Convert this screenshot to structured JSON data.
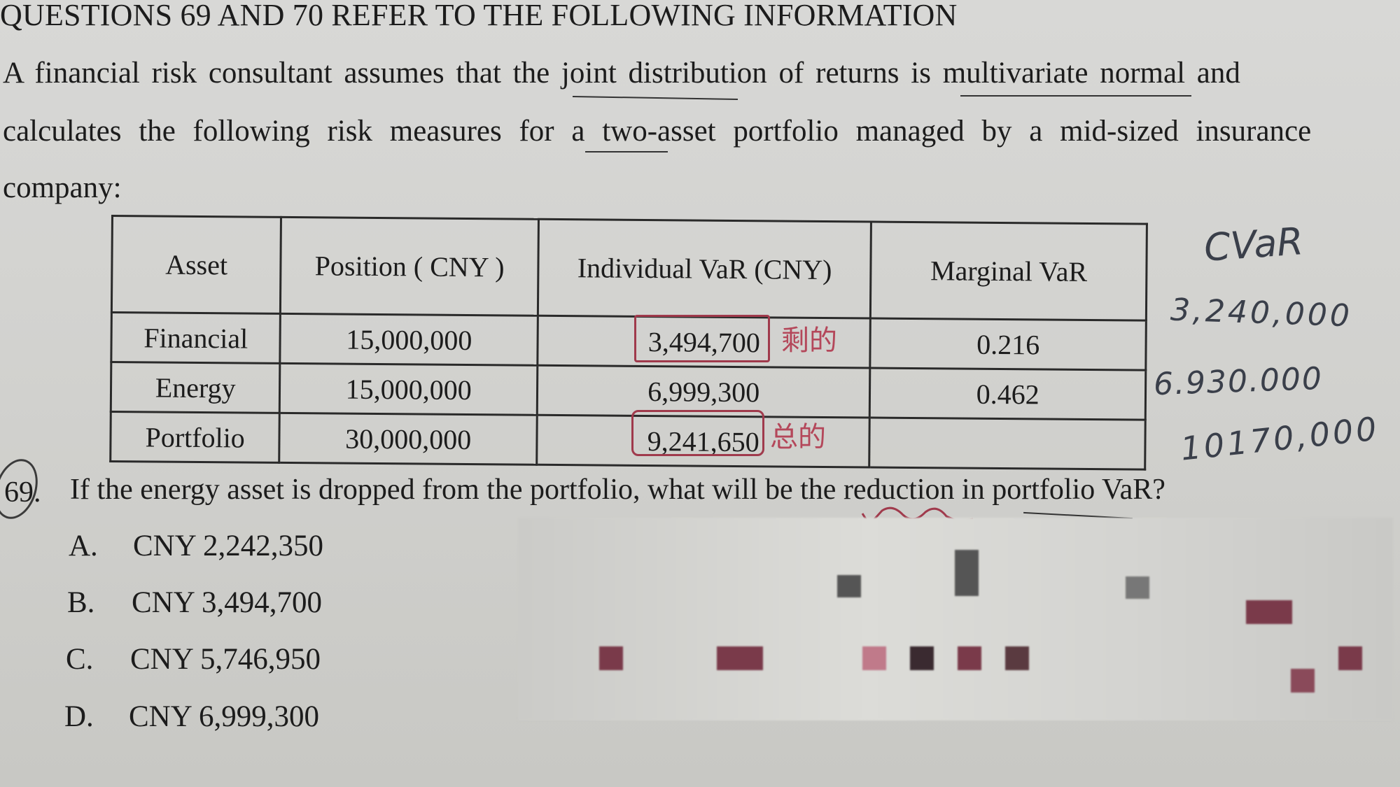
{
  "header": "QUESTIONS 69 AND 70 REFER TO THE FOLLOWING INFORMATION",
  "intro": {
    "line1": "A financial risk consultant assumes that the joint distribution of returns is multivariate normal and",
    "line2": "calculates the following risk measures for a two-asset portfolio managed by a mid-sized insurance",
    "line3": "company:"
  },
  "table": {
    "headers": [
      "Asset",
      "Position ( CNY )",
      "Individual VaR (CNY)",
      "Marginal VaR"
    ],
    "rows": [
      [
        "Financial",
        "15,000,000",
        "3,494,700",
        "0.216"
      ],
      [
        "Energy",
        "15,000,000",
        "6,999,300",
        "0.462"
      ],
      [
        "Portfolio",
        "30,000,000",
        "9,241,650",
        ""
      ]
    ]
  },
  "question": {
    "number": "69.",
    "text": "If the energy asset is dropped from the portfolio, what will be the reduction in portfolio VaR?",
    "options": [
      {
        "letter": "A.",
        "text": "CNY 2,242,350"
      },
      {
        "letter": "B.",
        "text": "CNY 3,494,700"
      },
      {
        "letter": "C.",
        "text": "CNY 5,746,950"
      },
      {
        "letter": "D.",
        "text": "CNY 6,999,300"
      }
    ]
  },
  "handwriting": {
    "label": "CVaR",
    "values": [
      "3,240,000",
      "6.930.000",
      "10170,000"
    ],
    "note_remaining": "剩的",
    "note_total": "总的"
  }
}
